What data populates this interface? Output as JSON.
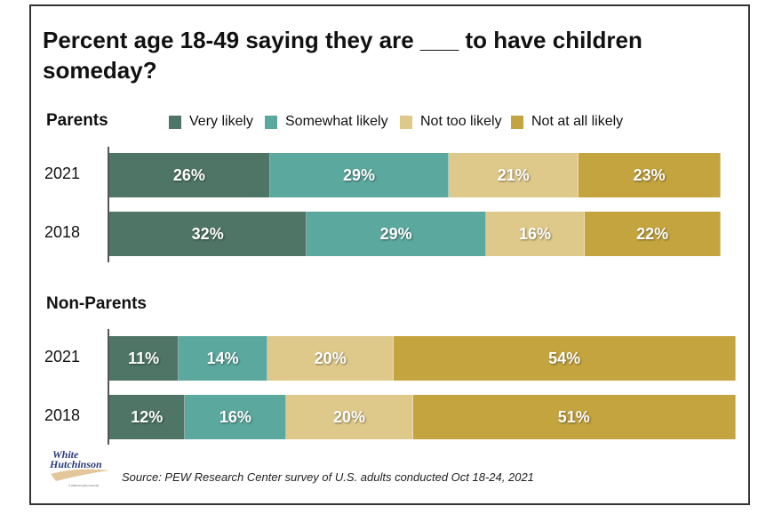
{
  "chart_data": {
    "type": "bar",
    "orientation": "horizontal-stacked",
    "title": "Percent age 18-49 saying they are ___ to have children someday?",
    "legend": {
      "placement": "top",
      "entries": [
        "Very likely",
        "Somewhat likely",
        "Not too likely",
        "Not at all likely"
      ]
    },
    "colors": [
      "#4e7565",
      "#5ba89e",
      "#dfc98a",
      "#c4a43e"
    ],
    "groups": [
      {
        "name": "Parents",
        "rows": [
          {
            "label": "2021",
            "values": [
              26,
              29,
              21,
              23
            ]
          },
          {
            "label": "2018",
            "values": [
              32,
              29,
              16,
              22
            ]
          }
        ]
      },
      {
        "name": "Non-Parents",
        "rows": [
          {
            "label": "2021",
            "values": [
              11,
              14,
              20,
              54
            ]
          },
          {
            "label": "2018",
            "values": [
              12,
              16,
              20,
              51
            ]
          }
        ]
      }
    ],
    "value_format": "%"
  },
  "source": "Source: PEW Research Center survey of U.S. adults conducted Oct 18-24, 2021",
  "logo": {
    "text": "White Hutchinson",
    "subtext": "LEISURE & LEARNING GROUP",
    "copyright": "© 2020 all rights reserved"
  }
}
